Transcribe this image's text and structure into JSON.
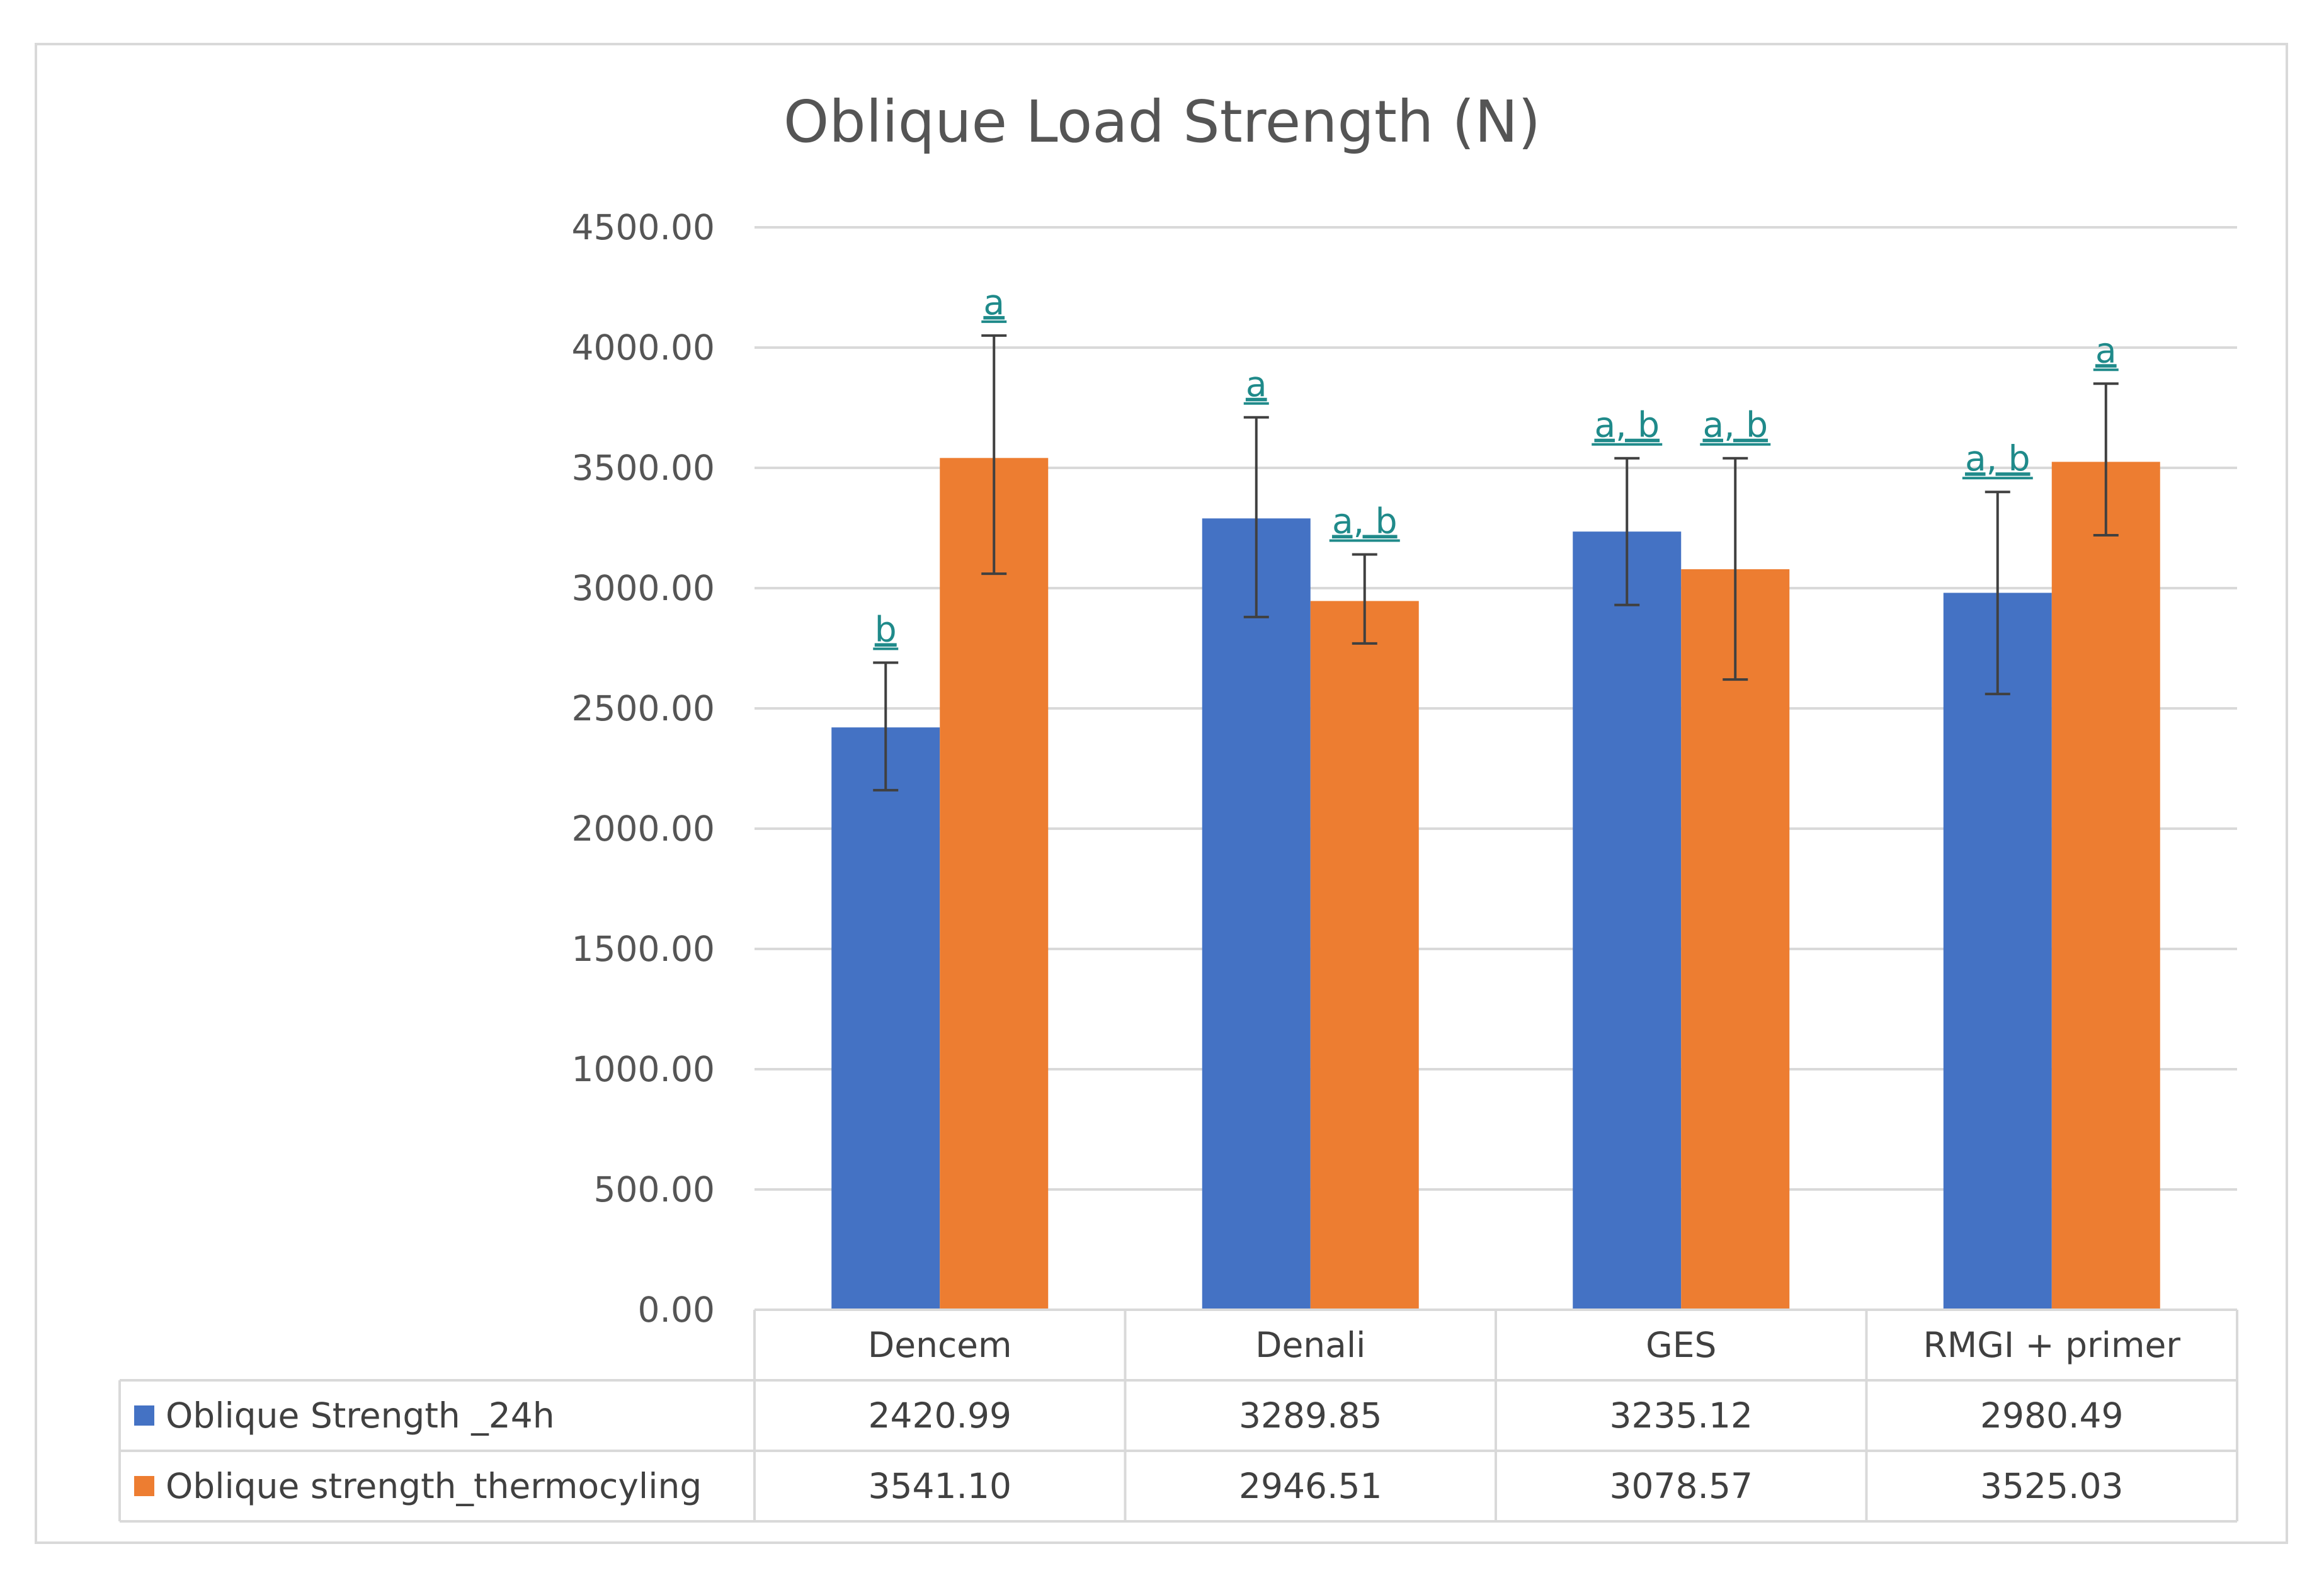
{
  "chart_data": {
    "type": "bar",
    "title": "Oblique Load Strength (N)",
    "xlabel": "",
    "ylabel": "",
    "ylim": [
      0,
      4500
    ],
    "ytick_step": 500,
    "ytick_labels": [
      "0.00",
      "500.00",
      "1000.00",
      "1500.00",
      "2000.00",
      "2500.00",
      "3000.00",
      "3500.00",
      "4000.00",
      "4500.00"
    ],
    "grid": true,
    "legend": "data-table-below",
    "categories": [
      "Dencem",
      "Denali",
      "GES",
      "RMGI + primer"
    ],
    "series": [
      {
        "name": "Oblique Strength _24h",
        "color": "#4472C4",
        "values": [
          2420.99,
          3289.85,
          3235.12,
          2980.49
        ],
        "value_labels": [
          "2420.99",
          "3289.85",
          "3235.12",
          "2980.49"
        ],
        "error_low": [
          2160,
          2880,
          2930,
          2560
        ],
        "error_high": [
          2690,
          3710,
          3540,
          3400
        ],
        "annotations": [
          "b",
          "a",
          "a, b",
          "a, b"
        ]
      },
      {
        "name": "Oblique strength_thermocyling",
        "color": "#ED7D31",
        "values": [
          3541.1,
          2946.51,
          3078.57,
          3525.03
        ],
        "value_labels": [
          "3541.10",
          "2946.51",
          "3078.57",
          "3525.03"
        ],
        "error_low": [
          3060,
          2770,
          2620,
          3220
        ],
        "error_high": [
          4050,
          3140,
          3540,
          3850
        ],
        "annotations": [
          "a",
          "a, b",
          "a, b",
          "a"
        ]
      }
    ]
  }
}
